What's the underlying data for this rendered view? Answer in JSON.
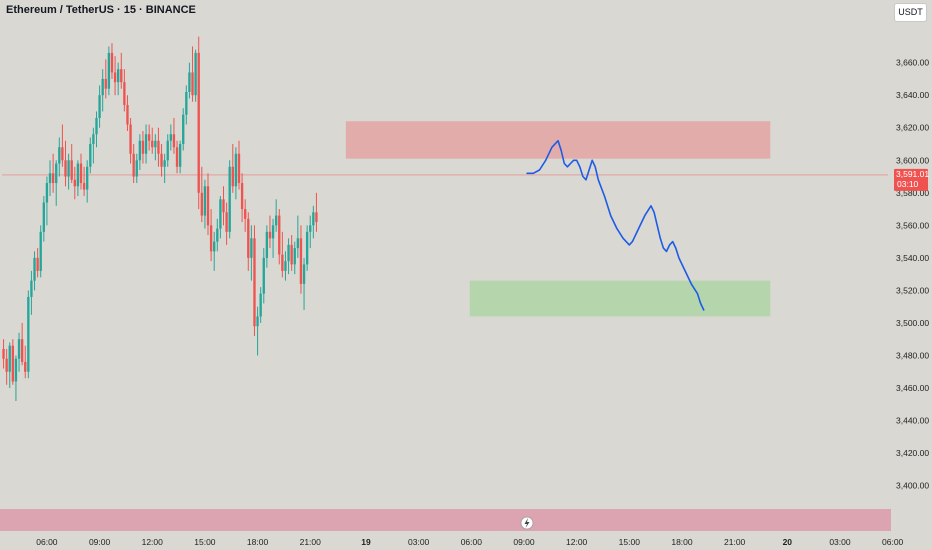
{
  "header": {
    "symbol": "Ethereum / TetherUS · 15 · BINANCE",
    "currency": "USDT"
  },
  "colors": {
    "background": "#d9d8d2",
    "up": "#26a69a",
    "down": "#ef5350",
    "supply_zone": "#e2aaa7",
    "demand_zone": "#b3d6ab",
    "projection": "#1e5be6",
    "price_badge": "#ef5350"
  },
  "chart_data": {
    "type": "candlestick",
    "ylim": [
      3385,
      3685
    ],
    "xlim": [
      0,
      286
    ],
    "y_ticks": [
      {
        "value": 3660,
        "label": "3,660.00"
      },
      {
        "value": 3640,
        "label": "3,640.00"
      },
      {
        "value": 3620,
        "label": "3,620.00"
      },
      {
        "value": 3600,
        "label": "3,600.00"
      },
      {
        "value": 3580,
        "label": "3,580.00"
      },
      {
        "value": 3560,
        "label": "3,560.00"
      },
      {
        "value": 3540,
        "label": "3,540.00"
      },
      {
        "value": 3520,
        "label": "3,520.00"
      },
      {
        "value": 3500,
        "label": "3,500.00"
      },
      {
        "value": 3480,
        "label": "3,480.00"
      },
      {
        "value": 3460,
        "label": "3,460.00"
      },
      {
        "value": 3440,
        "label": "3,440.00"
      },
      {
        "value": 3420,
        "label": "3,420.00"
      },
      {
        "value": 3400,
        "label": "3,400.00"
      }
    ],
    "x_ticks": [
      {
        "bar": 14,
        "label": "06:00",
        "bold": false
      },
      {
        "bar": 31,
        "label": "09:00",
        "bold": false
      },
      {
        "bar": 48,
        "label": "12:00",
        "bold": false
      },
      {
        "bar": 65,
        "label": "15:00",
        "bold": false
      },
      {
        "bar": 82,
        "label": "18:00",
        "bold": false
      },
      {
        "bar": 99,
        "label": "21:00",
        "bold": false
      },
      {
        "bar": 117,
        "label": "19",
        "bold": true
      },
      {
        "bar": 134,
        "label": "03:00",
        "bold": false
      },
      {
        "bar": 151,
        "label": "06:00",
        "bold": false
      },
      {
        "bar": 168,
        "label": "09:00",
        "bold": false
      },
      {
        "bar": 185,
        "label": "12:00",
        "bold": false
      },
      {
        "bar": 202,
        "label": "15:00",
        "bold": false
      },
      {
        "bar": 219,
        "label": "18:00",
        "bold": false
      },
      {
        "bar": 236,
        "label": "21:00",
        "bold": false
      },
      {
        "bar": 253,
        "label": "20",
        "bold": true
      },
      {
        "bar": 270,
        "label": "03:00",
        "bold": false
      },
      {
        "bar": 287,
        "label": "06:00",
        "bold": false
      }
    ],
    "ohlc": [
      [
        3484,
        3490,
        3472,
        3478
      ],
      [
        3478,
        3484,
        3462,
        3470
      ],
      [
        3470,
        3488,
        3460,
        3486
      ],
      [
        3486,
        3490,
        3462,
        3464
      ],
      [
        3464,
        3480,
        3452,
        3478
      ],
      [
        3478,
        3494,
        3470,
        3490
      ],
      [
        3490,
        3500,
        3474,
        3476
      ],
      [
        3476,
        3486,
        3466,
        3470
      ],
      [
        3470,
        3520,
        3466,
        3516
      ],
      [
        3516,
        3532,
        3505,
        3526
      ],
      [
        3526,
        3544,
        3520,
        3540
      ],
      [
        3540,
        3546,
        3528,
        3532
      ],
      [
        3532,
        3560,
        3528,
        3556
      ],
      [
        3556,
        3578,
        3550,
        3574
      ],
      [
        3574,
        3590,
        3560,
        3586
      ],
      [
        3586,
        3600,
        3578,
        3592
      ],
      [
        3592,
        3604,
        3580,
        3586
      ],
      [
        3586,
        3600,
        3572,
        3598
      ],
      [
        3598,
        3614,
        3590,
        3608
      ],
      [
        3608,
        3622,
        3596,
        3600
      ],
      [
        3600,
        3612,
        3584,
        3590
      ],
      [
        3590,
        3604,
        3582,
        3600
      ],
      [
        3600,
        3610,
        3586,
        3588
      ],
      [
        3588,
        3596,
        3576,
        3584
      ],
      [
        3584,
        3600,
        3578,
        3598
      ],
      [
        3598,
        3604,
        3582,
        3586
      ],
      [
        3586,
        3596,
        3578,
        3582
      ],
      [
        3582,
        3600,
        3574,
        3596
      ],
      [
        3596,
        3614,
        3592,
        3610
      ],
      [
        3610,
        3620,
        3598,
        3616
      ],
      [
        3616,
        3630,
        3608,
        3626
      ],
      [
        3626,
        3646,
        3620,
        3640
      ],
      [
        3640,
        3656,
        3630,
        3650
      ],
      [
        3650,
        3662,
        3638,
        3644
      ],
      [
        3644,
        3670,
        3640,
        3666
      ],
      [
        3666,
        3672,
        3650,
        3654
      ],
      [
        3654,
        3664,
        3640,
        3648
      ],
      [
        3648,
        3660,
        3640,
        3656
      ],
      [
        3656,
        3666,
        3644,
        3648
      ],
      [
        3648,
        3656,
        3630,
        3634
      ],
      [
        3634,
        3640,
        3618,
        3622
      ],
      [
        3622,
        3626,
        3598,
        3604
      ],
      [
        3604,
        3610,
        3586,
        3590
      ],
      [
        3590,
        3604,
        3586,
        3600
      ],
      [
        3600,
        3616,
        3594,
        3612
      ],
      [
        3612,
        3618,
        3598,
        3604
      ],
      [
        3604,
        3622,
        3598,
        3616
      ],
      [
        3616,
        3622,
        3606,
        3612
      ],
      [
        3612,
        3620,
        3604,
        3608
      ],
      [
        3608,
        3616,
        3600,
        3612
      ],
      [
        3612,
        3620,
        3596,
        3604
      ],
      [
        3604,
        3610,
        3590,
        3596
      ],
      [
        3596,
        3604,
        3586,
        3600
      ],
      [
        3600,
        3616,
        3596,
        3612
      ],
      [
        3612,
        3622,
        3606,
        3616
      ],
      [
        3616,
        3626,
        3604,
        3608
      ],
      [
        3608,
        3612,
        3592,
        3596
      ],
      [
        3596,
        3612,
        3592,
        3610
      ],
      [
        3610,
        3632,
        3606,
        3628
      ],
      [
        3628,
        3646,
        3622,
        3642
      ],
      [
        3642,
        3660,
        3638,
        3654
      ],
      [
        3654,
        3670,
        3636,
        3640
      ],
      [
        3640,
        3668,
        3636,
        3666
      ],
      [
        3666,
        3676,
        3570,
        3580
      ],
      [
        3580,
        3596,
        3562,
        3566
      ],
      [
        3566,
        3588,
        3558,
        3584
      ],
      [
        3584,
        3592,
        3554,
        3560
      ],
      [
        3560,
        3570,
        3538,
        3544
      ],
      [
        3544,
        3556,
        3532,
        3550
      ],
      [
        3550,
        3564,
        3544,
        3558
      ],
      [
        3558,
        3578,
        3552,
        3576
      ],
      [
        3576,
        3584,
        3560,
        3568
      ],
      [
        3568,
        3574,
        3548,
        3556
      ],
      [
        3556,
        3600,
        3552,
        3596
      ],
      [
        3596,
        3610,
        3580,
        3584
      ],
      [
        3584,
        3608,
        3576,
        3604
      ],
      [
        3604,
        3612,
        3582,
        3586
      ],
      [
        3586,
        3592,
        3562,
        3570
      ],
      [
        3570,
        3576,
        3556,
        3564
      ],
      [
        3564,
        3568,
        3532,
        3540
      ],
      [
        3540,
        3560,
        3526,
        3552
      ],
      [
        3552,
        3560,
        3492,
        3498
      ],
      [
        3498,
        3510,
        3480,
        3504
      ],
      [
        3504,
        3522,
        3500,
        3518
      ],
      [
        3518,
        3546,
        3512,
        3540
      ],
      [
        3540,
        3560,
        3534,
        3556
      ],
      [
        3556,
        3566,
        3546,
        3552
      ],
      [
        3552,
        3564,
        3540,
        3560
      ],
      [
        3560,
        3576,
        3556,
        3566
      ],
      [
        3566,
        3570,
        3536,
        3542
      ],
      [
        3542,
        3556,
        3528,
        3532
      ],
      [
        3532,
        3544,
        3526,
        3538
      ],
      [
        3538,
        3552,
        3530,
        3548
      ],
      [
        3548,
        3554,
        3532,
        3536
      ],
      [
        3536,
        3550,
        3530,
        3546
      ],
      [
        3546,
        3566,
        3540,
        3552
      ],
      [
        3552,
        3560,
        3518,
        3524
      ],
      [
        3524,
        3540,
        3508,
        3536
      ],
      [
        3536,
        3560,
        3532,
        3556
      ],
      [
        3556,
        3566,
        3546,
        3560
      ],
      [
        3560,
        3572,
        3552,
        3568
      ],
      [
        3568,
        3580,
        3556,
        3562
      ]
    ],
    "zones": [
      {
        "type": "supply",
        "from_bar": 111,
        "to_bar": 247,
        "top": 3624,
        "bottom": 3601
      },
      {
        "type": "demand",
        "from_bar": 151,
        "to_bar": 247,
        "top": 3526,
        "bottom": 3504
      }
    ],
    "current_price": {
      "value": 3591.01,
      "label": "3,591.01",
      "countdown": "03:10"
    },
    "projection_path": [
      [
        169,
        3592
      ],
      [
        171,
        3592
      ],
      [
        173,
        3594
      ],
      [
        175,
        3600
      ],
      [
        177,
        3608
      ],
      [
        179,
        3612
      ],
      [
        180,
        3606
      ],
      [
        181,
        3598
      ],
      [
        182,
        3596
      ],
      [
        183,
        3598
      ],
      [
        184,
        3600
      ],
      [
        185,
        3600
      ],
      [
        186,
        3596
      ],
      [
        187,
        3590
      ],
      [
        188,
        3588
      ],
      [
        189,
        3594
      ],
      [
        190,
        3600
      ],
      [
        191,
        3596
      ],
      [
        192,
        3588
      ],
      [
        194,
        3578
      ],
      [
        196,
        3566
      ],
      [
        198,
        3558
      ],
      [
        200,
        3552
      ],
      [
        202,
        3548
      ],
      [
        203,
        3550
      ],
      [
        205,
        3558
      ],
      [
        207,
        3566
      ],
      [
        209,
        3572
      ],
      [
        210,
        3568
      ],
      [
        211,
        3560
      ],
      [
        212,
        3552
      ],
      [
        213,
        3546
      ],
      [
        214,
        3544
      ],
      [
        215,
        3548
      ],
      [
        216,
        3550
      ],
      [
        217,
        3546
      ],
      [
        218,
        3540
      ],
      [
        220,
        3532
      ],
      [
        222,
        3524
      ],
      [
        224,
        3518
      ],
      [
        225,
        3512
      ],
      [
        226,
        3508
      ]
    ],
    "grid": false,
    "legend": "none"
  }
}
